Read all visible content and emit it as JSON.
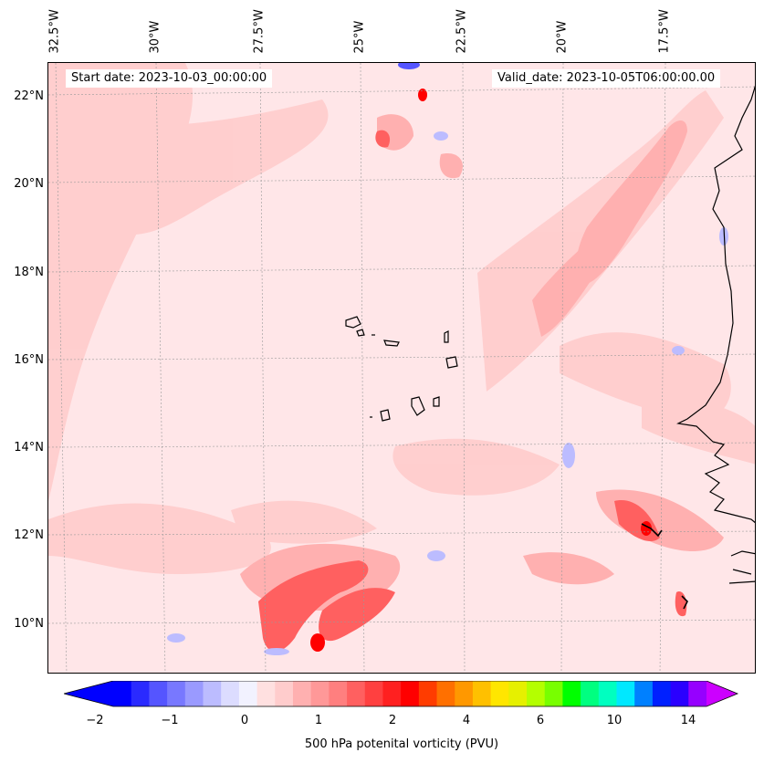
{
  "map": {
    "start_date": "Start date: 2023-10-03_00:00:00",
    "valid_date": "Valid_date: 2023-10-05T06:00:00.00",
    "lon_labels": [
      "32.5°W",
      "30°W",
      "27.5°W",
      "25°W",
      "22.5°W",
      "20°W",
      "17.5°W"
    ],
    "lat_labels": [
      "22°N",
      "20°N",
      "18°N",
      "16°N",
      "14°N",
      "12°N",
      "10°N"
    ],
    "colors": {
      "background_low_pv": "#ffe6e8",
      "land_outline": "#000000"
    }
  },
  "colorbar": {
    "label": "500 hPa potenital vorticity (PVU)",
    "ticks": [
      "−2",
      "−1",
      "0",
      "1",
      "2",
      "4",
      "6",
      "10",
      "14"
    ],
    "colors": [
      "#0000ff",
      "#2a2aff",
      "#5555ff",
      "#7878ff",
      "#9a9aff",
      "#bcbcff",
      "#dcdcff",
      "#f2f2ff",
      "#ffe0e0",
      "#ffcccc",
      "#ffb0b0",
      "#ff9898",
      "#ff7f7f",
      "#ff6060",
      "#ff4040",
      "#ff2020",
      "#ff0000",
      "#ff3c00",
      "#ff7000",
      "#ff9800",
      "#ffc000",
      "#ffe600",
      "#e6f000",
      "#b4ff00",
      "#78ff00",
      "#00ff00",
      "#00ff80",
      "#00ffc0",
      "#00e8ff",
      "#0080ff",
      "#0020ff",
      "#2a00ff",
      "#9600ff"
    ],
    "min_color": "#0000ff",
    "max_color": "#cc00ff"
  }
}
